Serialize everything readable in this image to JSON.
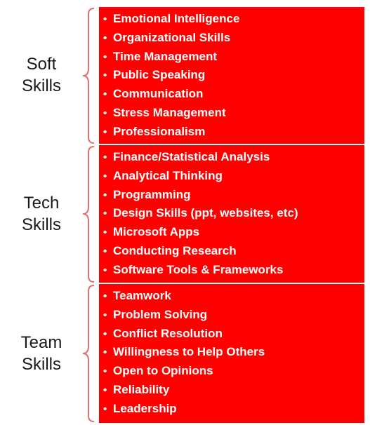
{
  "colors": {
    "box_fill": "#ff0000",
    "item_text": "#ffffff",
    "brace": "#e07070",
    "label_text": "#1a1a1a"
  },
  "bullet_glyph": "•",
  "groups": [
    {
      "label_line1": "Soft",
      "label_line2": "Skills",
      "items": [
        "Emotional Intelligence",
        "Organizational Skills",
        "Time Management",
        "Public Speaking",
        "Communication",
        "Stress Management",
        "Professionalism"
      ]
    },
    {
      "label_line1": "Tech",
      "label_line2": "Skills",
      "items": [
        "Finance/Statistical Analysis",
        "Analytical Thinking",
        "Programming",
        "Design Skills (ppt, websites, etc)",
        "Microsoft Apps",
        "Conducting Research",
        "Software Tools & Frameworks"
      ]
    },
    {
      "label_line1": "Team",
      "label_line2": "Skills",
      "items": [
        "Teamwork",
        "Problem Solving",
        "Conflict Resolution",
        "Willingness to Help Others",
        "Open to Opinions",
        "Reliability",
        "Leadership"
      ]
    }
  ]
}
